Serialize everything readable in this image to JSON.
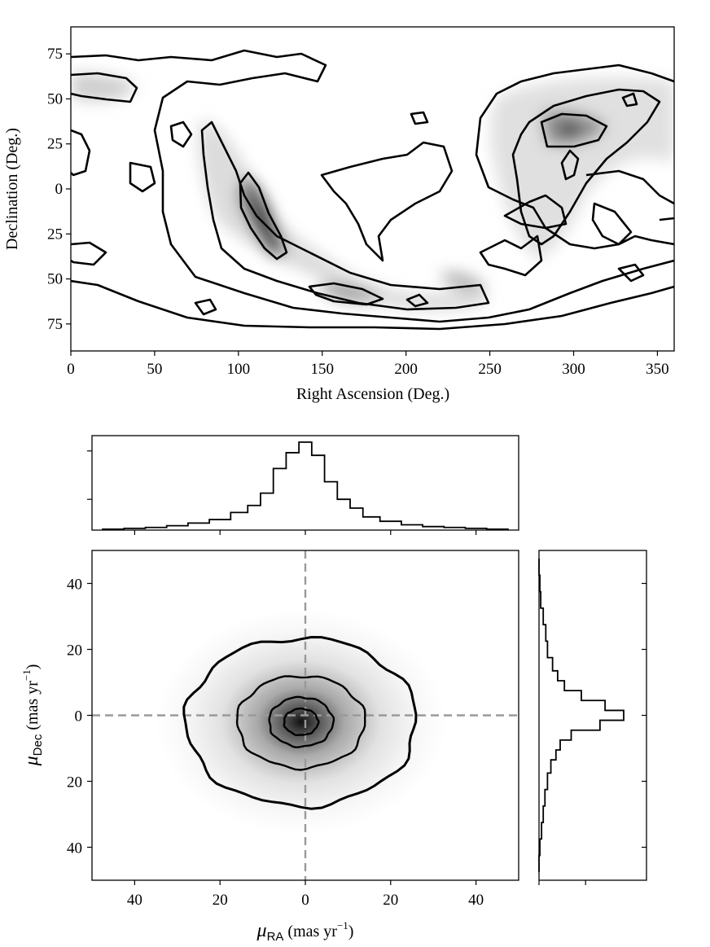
{
  "chart_data": [
    {
      "type": "heatmap",
      "description_kind": "sky density map with contour lines",
      "xlabel": "Right Ascension (Deg.)",
      "ylabel": "Declination (Deg.)",
      "xlim": [
        0,
        360
      ],
      "ylim": [
        90,
        -90
      ],
      "x_ticks": [
        0,
        50,
        100,
        150,
        200,
        250,
        300,
        350
      ],
      "y_ticks": [
        75,
        50,
        25,
        0,
        25,
        50,
        75
      ],
      "y_tick_values": [
        75,
        50,
        25,
        0,
        -25,
        -50,
        -75
      ],
      "grid": false,
      "colormap": "greys",
      "density_peaks": [
        {
          "ra": 115,
          "dec": -22,
          "strength": 1.0
        },
        {
          "ra": 300,
          "dec": 30,
          "strength": 0.95
        },
        {
          "ra": 160,
          "dec": -60,
          "strength": 0.6
        },
        {
          "ra": 240,
          "dec": -55,
          "strength": 0.5
        }
      ]
    },
    {
      "type": "heatmap",
      "description_kind": "proper-motion density with contour lines",
      "xlabel_main": "μ",
      "xlabel_sub": "RA",
      "xlabel_rest": " (mas yr",
      "xlabel_sup": "−1",
      "xlabel_end": ")",
      "ylabel_main": "μ",
      "ylabel_sub": "Dec",
      "ylabel_rest": " (mas yr",
      "ylabel_sup": "−1",
      "ylabel_end": ")",
      "xlim": [
        50,
        -50
      ],
      "ylim": [
        -50,
        50
      ],
      "x_ticks": [
        40,
        20,
        0,
        20,
        40
      ],
      "x_tick_values": [
        40,
        20,
        0,
        -20,
        -40
      ],
      "y_ticks": [
        40,
        20,
        0,
        20,
        40
      ],
      "y_tick_values": [
        40,
        20,
        0,
        -20,
        -40
      ],
      "reference_lines": {
        "x": 0,
        "y": 0,
        "style": "dashed",
        "color": "#999999"
      },
      "center": {
        "x": 1,
        "y": -2
      },
      "contours": [
        {
          "level": 1,
          "rx": 4,
          "ry": 4
        },
        {
          "level": 2,
          "rx": 7.5,
          "ry": 7.5
        },
        {
          "level": 3,
          "rx": 15,
          "ry": 14
        },
        {
          "level": 4,
          "rx": 27,
          "ry": 25.5
        }
      ]
    },
    {
      "type": "bar",
      "description_kind": "marginal histogram of μRA (step)",
      "bin_centers": [
        -45,
        -40,
        -35,
        -30,
        -25,
        -20,
        -15,
        -12,
        -9,
        -6,
        -3,
        0,
        3,
        6,
        9,
        12,
        15,
        20,
        25,
        30,
        35,
        40,
        45
      ],
      "values": [
        0.01,
        0.02,
        0.03,
        0.05,
        0.08,
        0.12,
        0.2,
        0.28,
        0.42,
        0.7,
        0.88,
        1.0,
        0.85,
        0.55,
        0.35,
        0.25,
        0.15,
        0.1,
        0.06,
        0.04,
        0.03,
        0.02,
        0.01
      ]
    },
    {
      "type": "bar",
      "description_kind": "marginal histogram of μDec (step, horizontal)",
      "bin_centers": [
        45,
        40,
        35,
        30,
        25,
        20,
        15,
        12,
        9,
        6,
        3,
        0,
        -3,
        -6,
        -9,
        -12,
        -15,
        -20,
        -25,
        -30,
        -35,
        -40,
        -45
      ],
      "values": [
        0.0,
        0.01,
        0.02,
        0.05,
        0.08,
        0.1,
        0.16,
        0.22,
        0.3,
        0.5,
        0.78,
        1.0,
        0.72,
        0.38,
        0.25,
        0.2,
        0.14,
        0.1,
        0.07,
        0.05,
        0.03,
        0.01,
        0.0
      ]
    }
  ]
}
